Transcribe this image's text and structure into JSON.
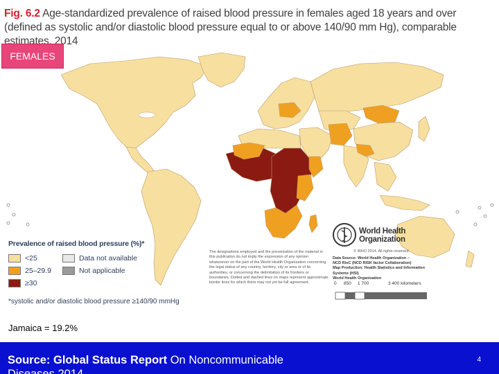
{
  "title": {
    "fig_label": "Fig. 6.2",
    "text": "Age-standardized prevalence of raised blood pressure in females aged 18 years and over (defined as systolic and/or diastolic blood pressure equal to or above 140/90 mm Hg), comparable estimates, 2014"
  },
  "badge": "FEMALES",
  "legend": {
    "title": "Prevalence of raised blood pressure (%)*",
    "items": [
      {
        "label": "<25",
        "color": "#f7dfa0"
      },
      {
        "label": "25–29.9",
        "color": "#f0a020"
      },
      {
        "label": "≥30",
        "color": "#8b1a12"
      },
      {
        "label": "Data not available",
        "color": "#e8e8e8"
      },
      {
        "label": "Not applicable",
        "color": "#9a9a9a"
      }
    ],
    "footnote": "*systolic and/or diastolic blood pressure ≥140/90 mmHg"
  },
  "disclaimer": "The designations employed and the presentation of the material in this publication do not imply the expression of any opinion whatsoever on the part of the World Health Organization concerning the legal status of any country, territory, city or area or of its authorities, or concerning the delimitation of its frontiers or boundaries. Dotted and dashed lines on maps represent approximate border lines for which there may not yet be full agreement.",
  "who": {
    "name_line1": "World Health",
    "name_line2": "Organization",
    "copyright": "© WHO 2014. All rights reserved."
  },
  "sources": {
    "line1": "Data Source: World Health Organization –",
    "line2": "NCD RisC (NCD RISK factor Collaboration)",
    "line3": "Map Production: Health Statistics and Information Systems (HSI)",
    "line4": "World Health Organization"
  },
  "scale": {
    "ticks": [
      "0",
      "850",
      "1 700",
      "3 400 kilometers"
    ]
  },
  "note": "Jamaica = 19.2%",
  "footer": {
    "source_bold": "Source: Global Status Report",
    "source_rest": "On Noncommunicable",
    "source_line2": "Diseases 2014",
    "page": "4"
  },
  "colors": {
    "low": "#f7dfa0",
    "mid": "#f0a020",
    "high": "#8b1a12",
    "na": "#e8e8e8",
    "notapp": "#9a9a9a",
    "water": "#ffffff",
    "bar": "#0a10d0"
  }
}
